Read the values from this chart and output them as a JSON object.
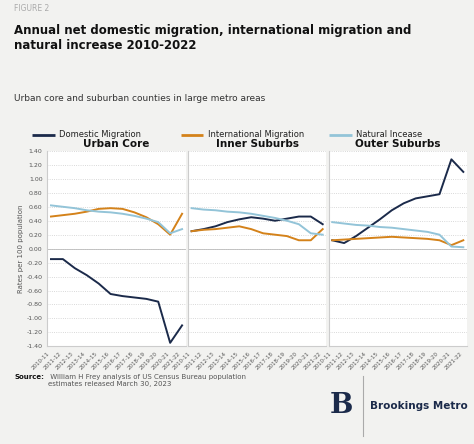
{
  "figure_label": "FIGURE 2",
  "title": "Annual net domestic migration, international migration and\nnatural increase 2010-2022",
  "subtitle": "Urban core and suburban counties in large metro areas",
  "source_bold": "Source:",
  "source_text": " William H Frey analysis of US Census Bureau population\nestimates released March 30, 2023",
  "ylabel": "Rates per 100 population",
  "xlabels": [
    "2010-11",
    "2011-12",
    "2012-13",
    "2013-14",
    "2014-15",
    "2015-16",
    "2016-17",
    "2017-18",
    "2018-19",
    "2019-20",
    "2020-21",
    "2021-22"
  ],
  "ylim": [
    -1.4,
    1.4
  ],
  "yticks": [
    -1.4,
    -1.2,
    -1.0,
    -0.8,
    -0.6,
    -0.4,
    -0.2,
    0.0,
    0.2,
    0.4,
    0.6,
    0.8,
    1.0,
    1.2,
    1.4
  ],
  "panel_titles": [
    "Urban Core",
    "Inner Suburbs",
    "Outer Suburbs"
  ],
  "domestic_color": "#1b2a4a",
  "international_color": "#d4821a",
  "natural_color": "#93c4d8",
  "line_width": 1.4,
  "urban_core": {
    "domestic": [
      -0.15,
      -0.15,
      -0.28,
      -0.38,
      -0.5,
      -0.65,
      -0.68,
      -0.7,
      -0.72,
      -0.76,
      -1.35,
      -1.1
    ],
    "international": [
      0.46,
      0.48,
      0.5,
      0.53,
      0.57,
      0.58,
      0.57,
      0.52,
      0.45,
      0.35,
      0.2,
      0.5
    ],
    "natural": [
      0.62,
      0.6,
      0.58,
      0.55,
      0.53,
      0.52,
      0.5,
      0.47,
      0.43,
      0.38,
      0.22,
      0.28
    ]
  },
  "inner_suburbs": {
    "domestic": [
      0.25,
      0.28,
      0.32,
      0.38,
      0.42,
      0.45,
      0.43,
      0.4,
      0.43,
      0.46,
      0.46,
      0.35
    ],
    "international": [
      0.25,
      0.27,
      0.28,
      0.3,
      0.32,
      0.28,
      0.22,
      0.2,
      0.18,
      0.12,
      0.12,
      0.28
    ],
    "natural": [
      0.58,
      0.56,
      0.55,
      0.53,
      0.52,
      0.5,
      0.47,
      0.44,
      0.4,
      0.35,
      0.22,
      0.2
    ]
  },
  "outer_suburbs": {
    "domestic": [
      0.12,
      0.08,
      0.18,
      0.3,
      0.42,
      0.55,
      0.65,
      0.72,
      0.75,
      0.78,
      1.28,
      1.1
    ],
    "international": [
      0.12,
      0.13,
      0.14,
      0.15,
      0.16,
      0.17,
      0.16,
      0.15,
      0.14,
      0.12,
      0.05,
      0.12
    ],
    "natural": [
      0.38,
      0.36,
      0.34,
      0.33,
      0.31,
      0.3,
      0.28,
      0.26,
      0.24,
      0.2,
      0.03,
      0.02
    ]
  },
  "background_color": "#f2f2f0",
  "panel_bg": "#ffffff",
  "grid_color": "#cccccc"
}
